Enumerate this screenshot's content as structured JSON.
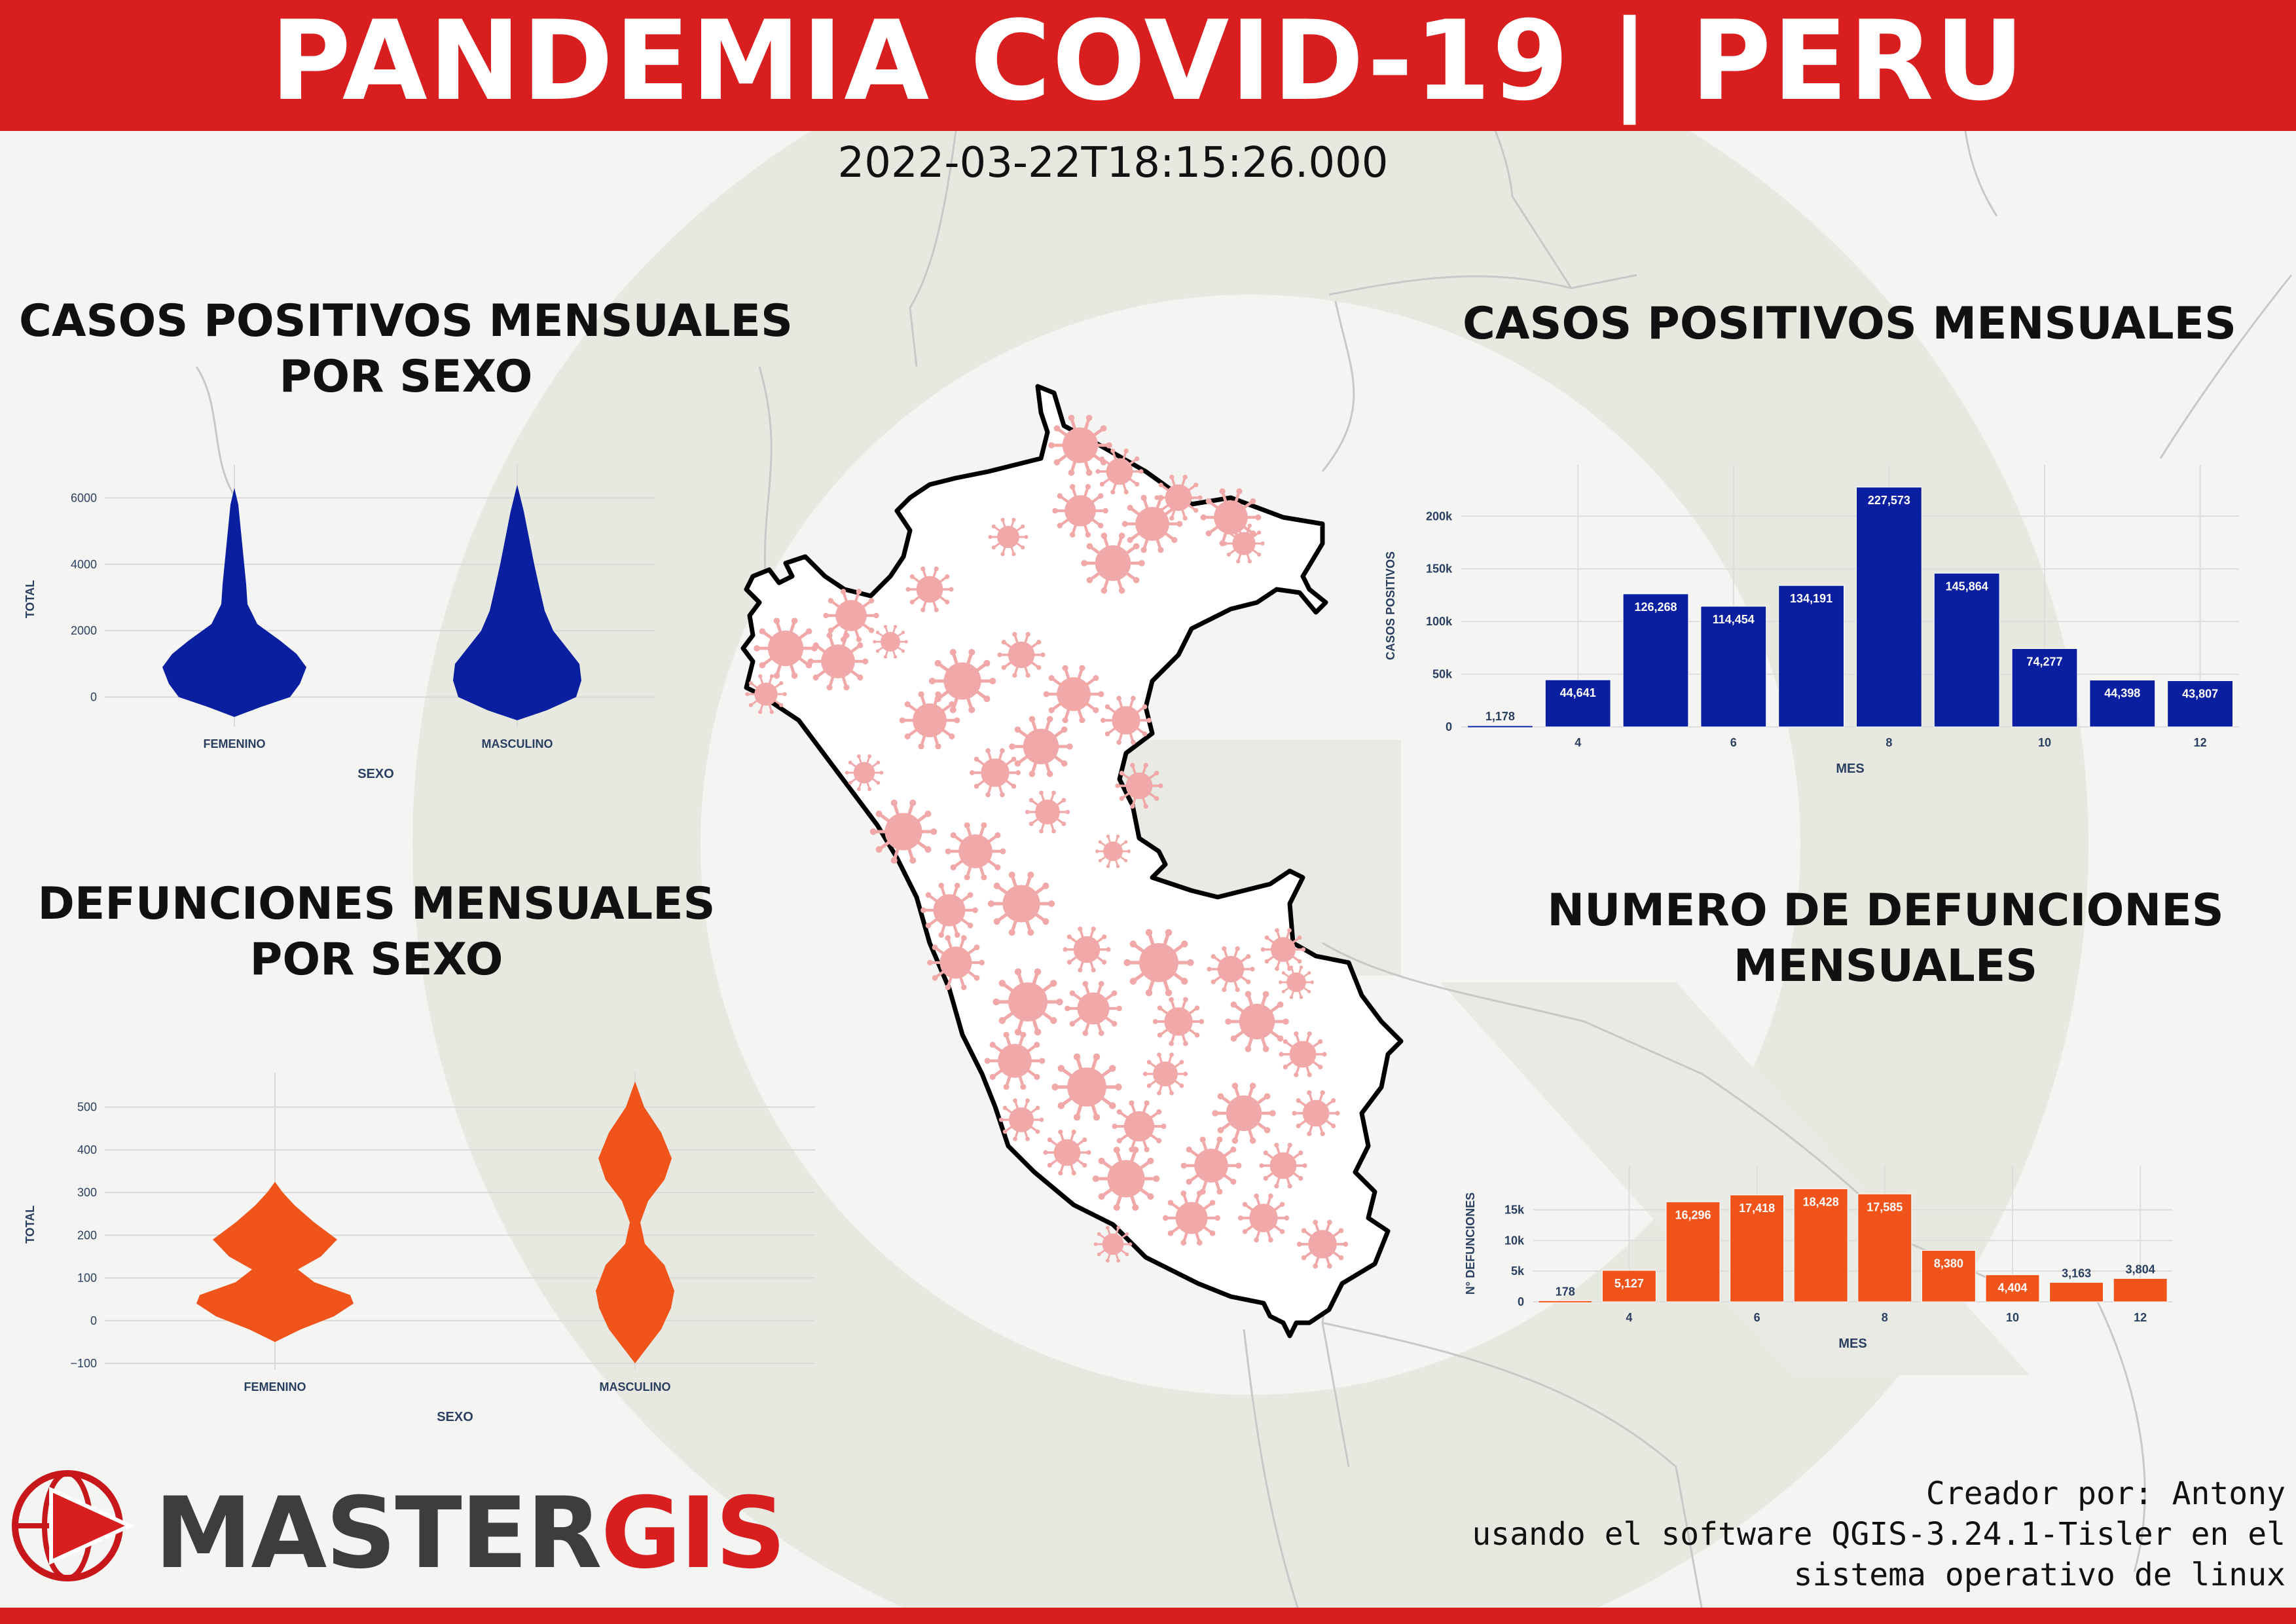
{
  "title": "PANDEMIA COVID-19 | PERU",
  "timestamp": "2022-03-22T18:15:26.000",
  "sections": {
    "violin_cases_title_1": "CASOS POSITIVOS MENSUALES",
    "violin_cases_title_2": "POR SEXO",
    "violin_deaths_title_1": "DEFUNCIONES MENSUALES",
    "violin_deaths_title_2": "POR SEXO",
    "bar_cases_title": "CASOS POSITIVOS MENSUALES",
    "bar_deaths_title_1": "NUMERO DE DEFUNCIONES",
    "bar_deaths_title_2": "MENSUALES"
  },
  "credit": {
    "line1": "Creador por: Antony",
    "line2": "usando el software QGIS-3.24.1-Tisler en el",
    "line3": "sistema operativo de linux"
  },
  "logo": {
    "part1": "MASTER",
    "part2": "GIS"
  },
  "colors": {
    "banner": "#d81e1f",
    "blue": "#0a1fa0",
    "orange": "#f0541a",
    "virus": "#f1a8a8"
  },
  "chart_data": [
    {
      "type": "violin",
      "xlabel": "SEXO",
      "ylabel": "TOTAL",
      "categories": [
        "FEMENINO",
        "MASCULINO"
      ],
      "yticks": [
        "0",
        "2000",
        "4000",
        "6000"
      ],
      "ylim": [
        -700,
        6600
      ],
      "color": "#0a1fa0",
      "series": [
        {
          "name": "FEMENINO",
          "min": -600,
          "max": 6300,
          "median": 1000
        },
        {
          "name": "MASCULINO",
          "min": -700,
          "max": 6400,
          "median": 1000
        }
      ]
    },
    {
      "type": "violin",
      "xlabel": "SEXO",
      "ylabel": "TOTAL",
      "categories": [
        "FEMENINO",
        "MASCULINO"
      ],
      "yticks": [
        "−100",
        "0",
        "100",
        "200",
        "300",
        "400",
        "500"
      ],
      "ylim": [
        -100,
        550
      ],
      "color": "#f0541a",
      "series": [
        {
          "name": "FEMENINO",
          "min": -50,
          "max": 325,
          "modes": [
            50,
            190
          ]
        },
        {
          "name": "MASCULINO",
          "min": -100,
          "max": 560,
          "modes": [
            70,
            380
          ]
        }
      ]
    },
    {
      "type": "bar",
      "xlabel": "MES",
      "ylabel": "CASOS POSITIVOS",
      "x": [
        3,
        4,
        5,
        6,
        7,
        8,
        9,
        10,
        11,
        12
      ],
      "values": [
        1178,
        44641,
        126268,
        114454,
        134191,
        227573,
        145864,
        74277,
        44398,
        43807
      ],
      "labels": [
        "1,178",
        "44,641",
        "126,268",
        "114,454",
        "134,191",
        "227,573",
        "145,864",
        "74,277",
        "44,398",
        "43,807"
      ],
      "xticks": [
        "4",
        "6",
        "8",
        "10",
        "12"
      ],
      "yticks": [
        "0",
        "50k",
        "100k",
        "150k",
        "200k"
      ],
      "ylim": [
        0,
        230000
      ],
      "color": "#0a1fa0"
    },
    {
      "type": "bar",
      "xlabel": "MES",
      "ylabel": "N° DEFUNCIONES",
      "x": [
        3,
        4,
        5,
        6,
        7,
        8,
        9,
        10,
        11,
        12
      ],
      "values": [
        178,
        5127,
        16296,
        17418,
        18428,
        17585,
        8380,
        4404,
        3163,
        3804
      ],
      "labels": [
        "178",
        "5,127",
        "16,296",
        "17,418",
        "18,428",
        "17,585",
        "8,380",
        "4,404",
        "3,163",
        "3,804"
      ],
      "xticks": [
        "4",
        "6",
        "8",
        "10",
        "12"
      ],
      "yticks": [
        "0",
        "5k",
        "10k",
        "15k"
      ],
      "ylim": [
        0,
        19000
      ],
      "color": "#f0541a"
    }
  ]
}
